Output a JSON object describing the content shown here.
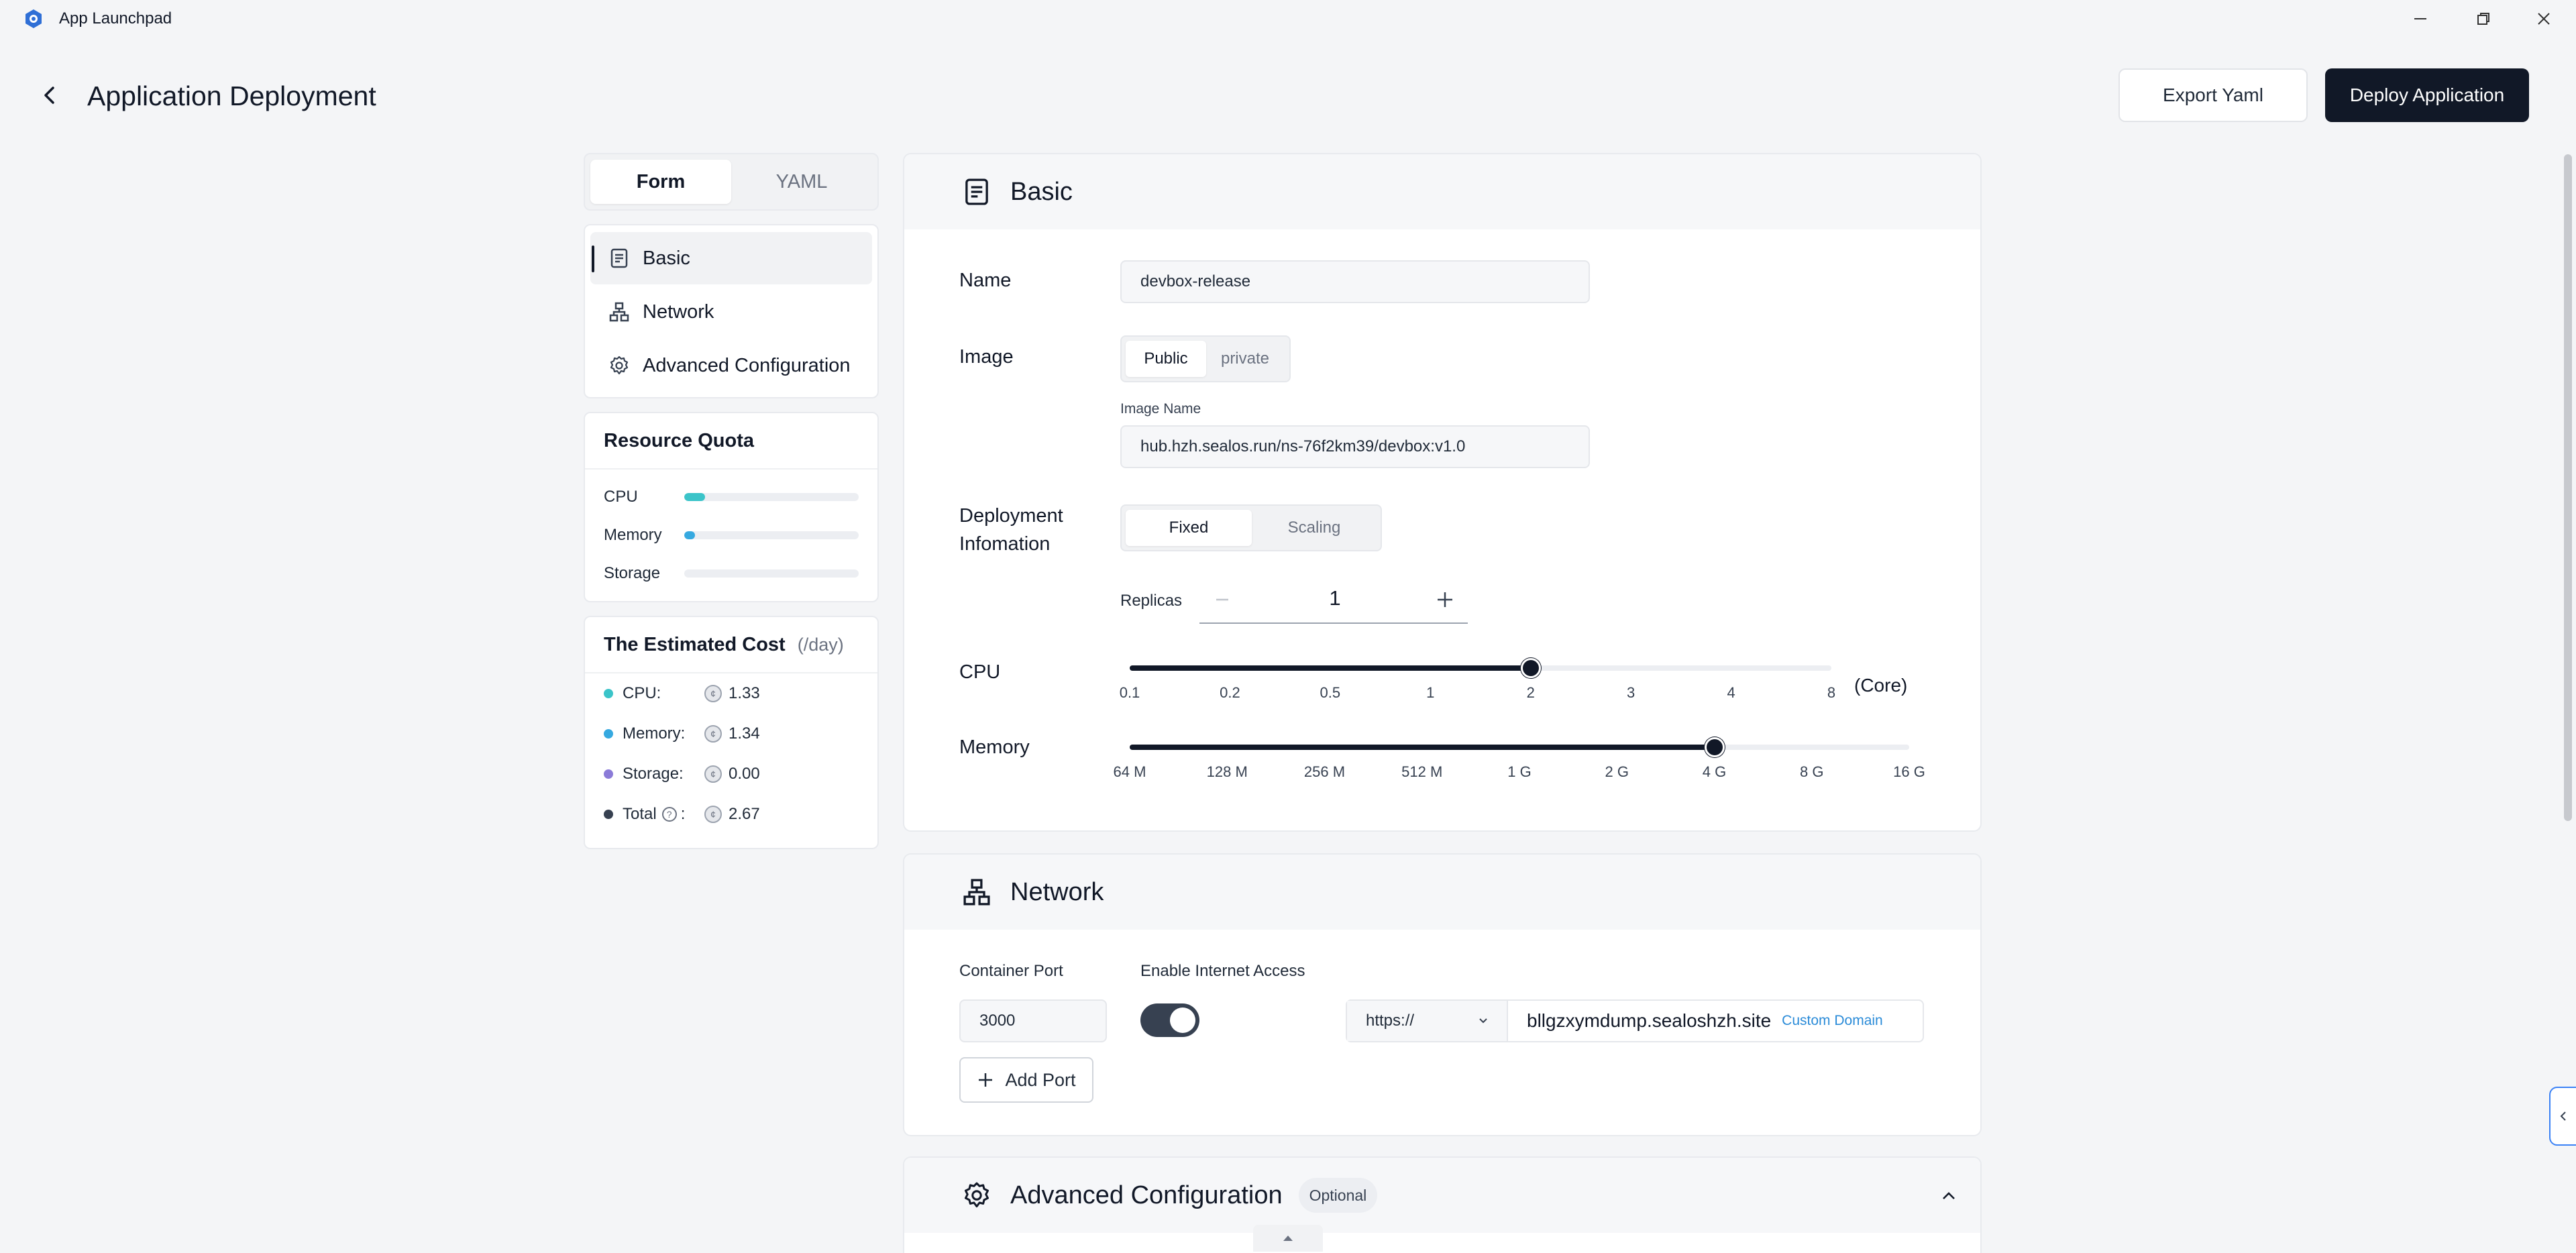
{
  "window": {
    "title": "App Launchpad"
  },
  "header": {
    "title": "Application Deployment",
    "export_label": "Export Yaml",
    "deploy_label": "Deploy Application"
  },
  "tabs": [
    {
      "label": "Form",
      "active": true
    },
    {
      "label": "YAML",
      "active": false
    }
  ],
  "nav": [
    {
      "label": "Basic",
      "icon": "document-icon",
      "active": true
    },
    {
      "label": "Network",
      "icon": "network-icon",
      "active": false
    },
    {
      "label": "Advanced Configuration",
      "icon": "gear-icon",
      "active": false
    }
  ],
  "quota": {
    "title": "Resource Quota",
    "items": [
      {
        "label": "CPU",
        "fraction": 0.12,
        "color": "#3bc4c9"
      },
      {
        "label": "Memory",
        "fraction": 0.06,
        "color": "#36a9e0"
      },
      {
        "label": "Storage",
        "fraction": 0.0,
        "color": "#8b7bd8"
      }
    ]
  },
  "cost": {
    "title": "The Estimated Cost",
    "unit": "(/day)",
    "items": [
      {
        "label": "CPU:",
        "value": "1.33",
        "color": "#3bc4c9"
      },
      {
        "label": "Memory:",
        "value": "1.34",
        "color": "#36a9e0"
      },
      {
        "label": "Storage:",
        "value": "0.00",
        "color": "#8b7bd8"
      },
      {
        "label": "Total",
        "suffix": ":",
        "value": "2.67",
        "color": "#374151"
      }
    ]
  },
  "basic": {
    "section_title": "Basic",
    "name_label": "Name",
    "name_value": "devbox-release",
    "image_label": "Image",
    "image_options": [
      "Public",
      "private"
    ],
    "image_selected": "Public",
    "image_name_label": "Image Name",
    "image_name_value": "hub.hzh.sealos.run/ns-76f2km39/devbox:v1.0",
    "deploy_label": "Deployment Infomation",
    "deploy_options": [
      "Fixed",
      "Scaling"
    ],
    "deploy_selected": "Fixed",
    "replicas_label": "Replicas",
    "replicas_value": "1",
    "cpu_label": "CPU",
    "cpu_ticks": [
      "0.1",
      "0.2",
      "0.5",
      "1",
      "2",
      "3",
      "4",
      "8"
    ],
    "cpu_selected": "2",
    "cpu_unit": "(Core)",
    "memory_label": "Memory",
    "memory_ticks": [
      "64 M",
      "128 M",
      "256 M",
      "512 M",
      "1 G",
      "2 G",
      "4 G",
      "8 G",
      "16 G"
    ],
    "memory_selected": "4 G"
  },
  "network": {
    "section_title": "Network",
    "port_label": "Container Port",
    "port_value": "3000",
    "internet_label": "Enable Internet Access",
    "internet_enabled": true,
    "protocol": "https://",
    "domain": "bllgzxymdump.sealoshzh.site",
    "custom_domain_label": "Custom Domain",
    "add_port_label": "Add Port"
  },
  "advanced": {
    "section_title": "Advanced Configuration",
    "badge": "Optional"
  }
}
